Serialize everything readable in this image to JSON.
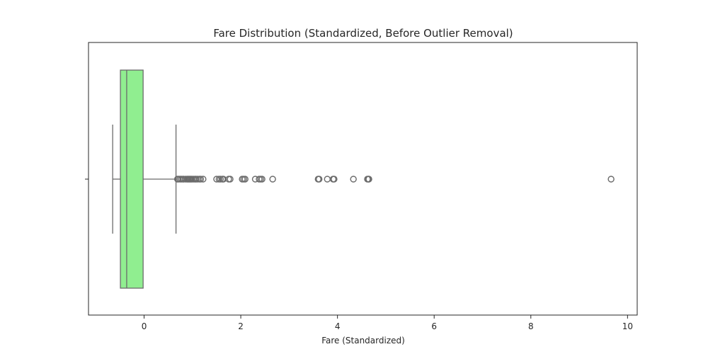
{
  "chart_data": {
    "type": "boxplot",
    "title": "Fare Distribution (Standardized, Before Outlier Removal)",
    "xlabel": "Fare (Standardized)",
    "ylabel": "",
    "xlim": [
      -1.15,
      10.2
    ],
    "xticks": [
      0,
      2,
      4,
      6,
      8,
      10
    ],
    "xtick_labels": [
      "0",
      "2",
      "4",
      "6",
      "8",
      "10"
    ],
    "orientation": "horizontal",
    "box": {
      "whisker_low": -0.65,
      "q1": -0.49,
      "median": -0.36,
      "q3": -0.02,
      "whisker_high": 0.66
    },
    "outliers": [
      0.69,
      0.71,
      0.74,
      0.77,
      0.8,
      0.82,
      0.86,
      0.89,
      0.91,
      0.93,
      0.95,
      0.97,
      0.99,
      1.02,
      1.05,
      1.07,
      1.1,
      1.14,
      1.17,
      1.22,
      1.5,
      1.55,
      1.58,
      1.62,
      1.64,
      1.75,
      1.78,
      2.03,
      2.06,
      2.09,
      2.3,
      2.38,
      2.41,
      2.44,
      2.66,
      3.6,
      3.62,
      3.79,
      3.91,
      3.93,
      4.33,
      4.62,
      4.64,
      4.65,
      9.66
    ],
    "box_color": "#90ee90",
    "line_color": "#6b6b6b",
    "grid": false
  }
}
